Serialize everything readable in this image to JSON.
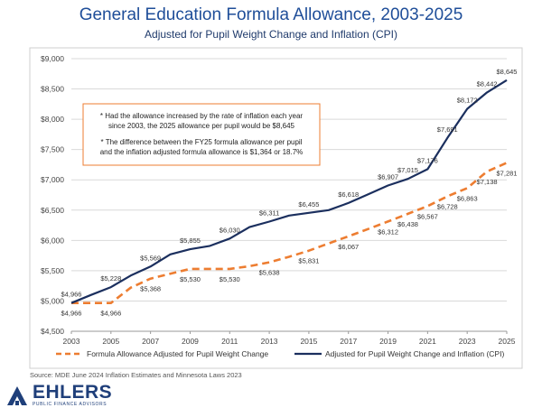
{
  "chart_data": {
    "type": "line",
    "title": "General Education Formula Allowance, 2003-2025",
    "subtitle": "Adjusted for Pupil Weight Change and Inflation (CPI)",
    "xlim": [
      2003,
      2025
    ],
    "ylim": [
      4500,
      9000
    ],
    "x_ticks": [
      "2003",
      "2005",
      "2007",
      "2009",
      "2011",
      "2013",
      "2015",
      "2017",
      "2019",
      "2021",
      "2023",
      "2025"
    ],
    "y_ticks": [
      "$4,500",
      "$5,000",
      "$5,500",
      "$6,000",
      "$6,500",
      "$7,000",
      "$7,500",
      "$8,000",
      "$8,500",
      "$9,000"
    ],
    "grid": true,
    "legend_position": "bottom",
    "series": [
      {
        "name": "Formula Allowance Adjusted for Pupil Weight Change",
        "color": "#ed7d31",
        "style": "dashed",
        "x": [
          2003,
          2004,
          2005,
          2006,
          2007,
          2008,
          2009,
          2010,
          2011,
          2012,
          2013,
          2014,
          2015,
          2016,
          2017,
          2018,
          2019,
          2020,
          2021,
          2022,
          2023,
          2024,
          2025
        ],
        "values": [
          4966,
          4966,
          4966,
          5220,
          5368,
          5450,
          5530,
          5530,
          5530,
          5575,
          5638,
          5730,
          5831,
          5950,
          6067,
          6188,
          6312,
          6438,
          6567,
          6728,
          6863,
          7138,
          7281
        ]
      },
      {
        "name": "Adjusted for Pupil Weight Change and Inflation (CPI)",
        "color": "#1b2f5e",
        "style": "solid",
        "x": [
          2003,
          2004,
          2005,
          2006,
          2007,
          2008,
          2009,
          2010,
          2011,
          2012,
          2013,
          2014,
          2015,
          2016,
          2017,
          2018,
          2019,
          2020,
          2021,
          2022,
          2023,
          2024,
          2025
        ],
        "values": [
          4966,
          5100,
          5228,
          5420,
          5569,
          5770,
          5855,
          5910,
          6030,
          6220,
          6311,
          6410,
          6455,
          6500,
          6618,
          6760,
          6907,
          7015,
          7176,
          7691,
          8172,
          8442,
          8645
        ]
      }
    ],
    "data_labels": [
      {
        "series": 0,
        "x": 2003,
        "text": "$4,966",
        "pos": "below"
      },
      {
        "series": 0,
        "x": 2005,
        "text": "$4,966",
        "pos": "below"
      },
      {
        "series": 0,
        "x": 2007,
        "text": "$5,368",
        "pos": "below"
      },
      {
        "series": 0,
        "x": 2009,
        "text": "$5,530",
        "pos": "below"
      },
      {
        "series": 0,
        "x": 2011,
        "text": "$5,530",
        "pos": "below"
      },
      {
        "series": 0,
        "x": 2013,
        "text": "$5,638",
        "pos": "below"
      },
      {
        "series": 0,
        "x": 2015,
        "text": "$5,831",
        "pos": "below"
      },
      {
        "series": 0,
        "x": 2017,
        "text": "$6,067",
        "pos": "below"
      },
      {
        "series": 0,
        "x": 2019,
        "text": "$6,312",
        "pos": "below"
      },
      {
        "series": 0,
        "x": 2020,
        "text": "$6,438",
        "pos": "below"
      },
      {
        "series": 0,
        "x": 2021,
        "text": "$6,567",
        "pos": "below"
      },
      {
        "series": 0,
        "x": 2022,
        "text": "$6,728",
        "pos": "below"
      },
      {
        "series": 0,
        "x": 2023,
        "text": "$6,863",
        "pos": "below"
      },
      {
        "series": 0,
        "x": 2024,
        "text": "$7,138",
        "pos": "below"
      },
      {
        "series": 0,
        "x": 2025,
        "text": "$7,281",
        "pos": "below"
      },
      {
        "series": 1,
        "x": 2003,
        "text": "$4,966",
        "pos": "above"
      },
      {
        "series": 1,
        "x": 2005,
        "text": "$5,228",
        "pos": "above"
      },
      {
        "series": 1,
        "x": 2007,
        "text": "$5,569",
        "pos": "above"
      },
      {
        "series": 1,
        "x": 2009,
        "text": "$5,855",
        "pos": "above"
      },
      {
        "series": 1,
        "x": 2011,
        "text": "$6,030",
        "pos": "above"
      },
      {
        "series": 1,
        "x": 2013,
        "text": "$6,311",
        "pos": "above"
      },
      {
        "series": 1,
        "x": 2015,
        "text": "$6,455",
        "pos": "above"
      },
      {
        "series": 1,
        "x": 2017,
        "text": "$6,618",
        "pos": "above"
      },
      {
        "series": 1,
        "x": 2019,
        "text": "$6,907",
        "pos": "above"
      },
      {
        "series": 1,
        "x": 2020,
        "text": "$7,015",
        "pos": "above"
      },
      {
        "series": 1,
        "x": 2021,
        "text": "$7,176",
        "pos": "above"
      },
      {
        "series": 1,
        "x": 2022,
        "text": "$7,691",
        "pos": "above"
      },
      {
        "series": 1,
        "x": 2023,
        "text": "$8,172",
        "pos": "above"
      },
      {
        "series": 1,
        "x": 2024,
        "text": "$8,442",
        "pos": "above"
      },
      {
        "series": 1,
        "x": 2025,
        "text": "$8,645",
        "pos": "above"
      }
    ],
    "annotation": [
      "* Had the allowance increased by the rate of inflation each year",
      "since 2003, the 2025 allowance per pupil would be $8,645",
      "* The difference between the FY25 formula allowance per pupil",
      "and the inflation adjusted formula allowance is $1,364 or 18.7%"
    ],
    "annotation_border_color": "#ed7d31"
  },
  "source": "Source: MDE June 2024 Inflation Estimates and Minnesota Laws 2023",
  "logo": {
    "name": "EHLERS",
    "tagline": "PUBLIC FINANCE ADVISORS",
    "color": "#1f3f7a"
  }
}
